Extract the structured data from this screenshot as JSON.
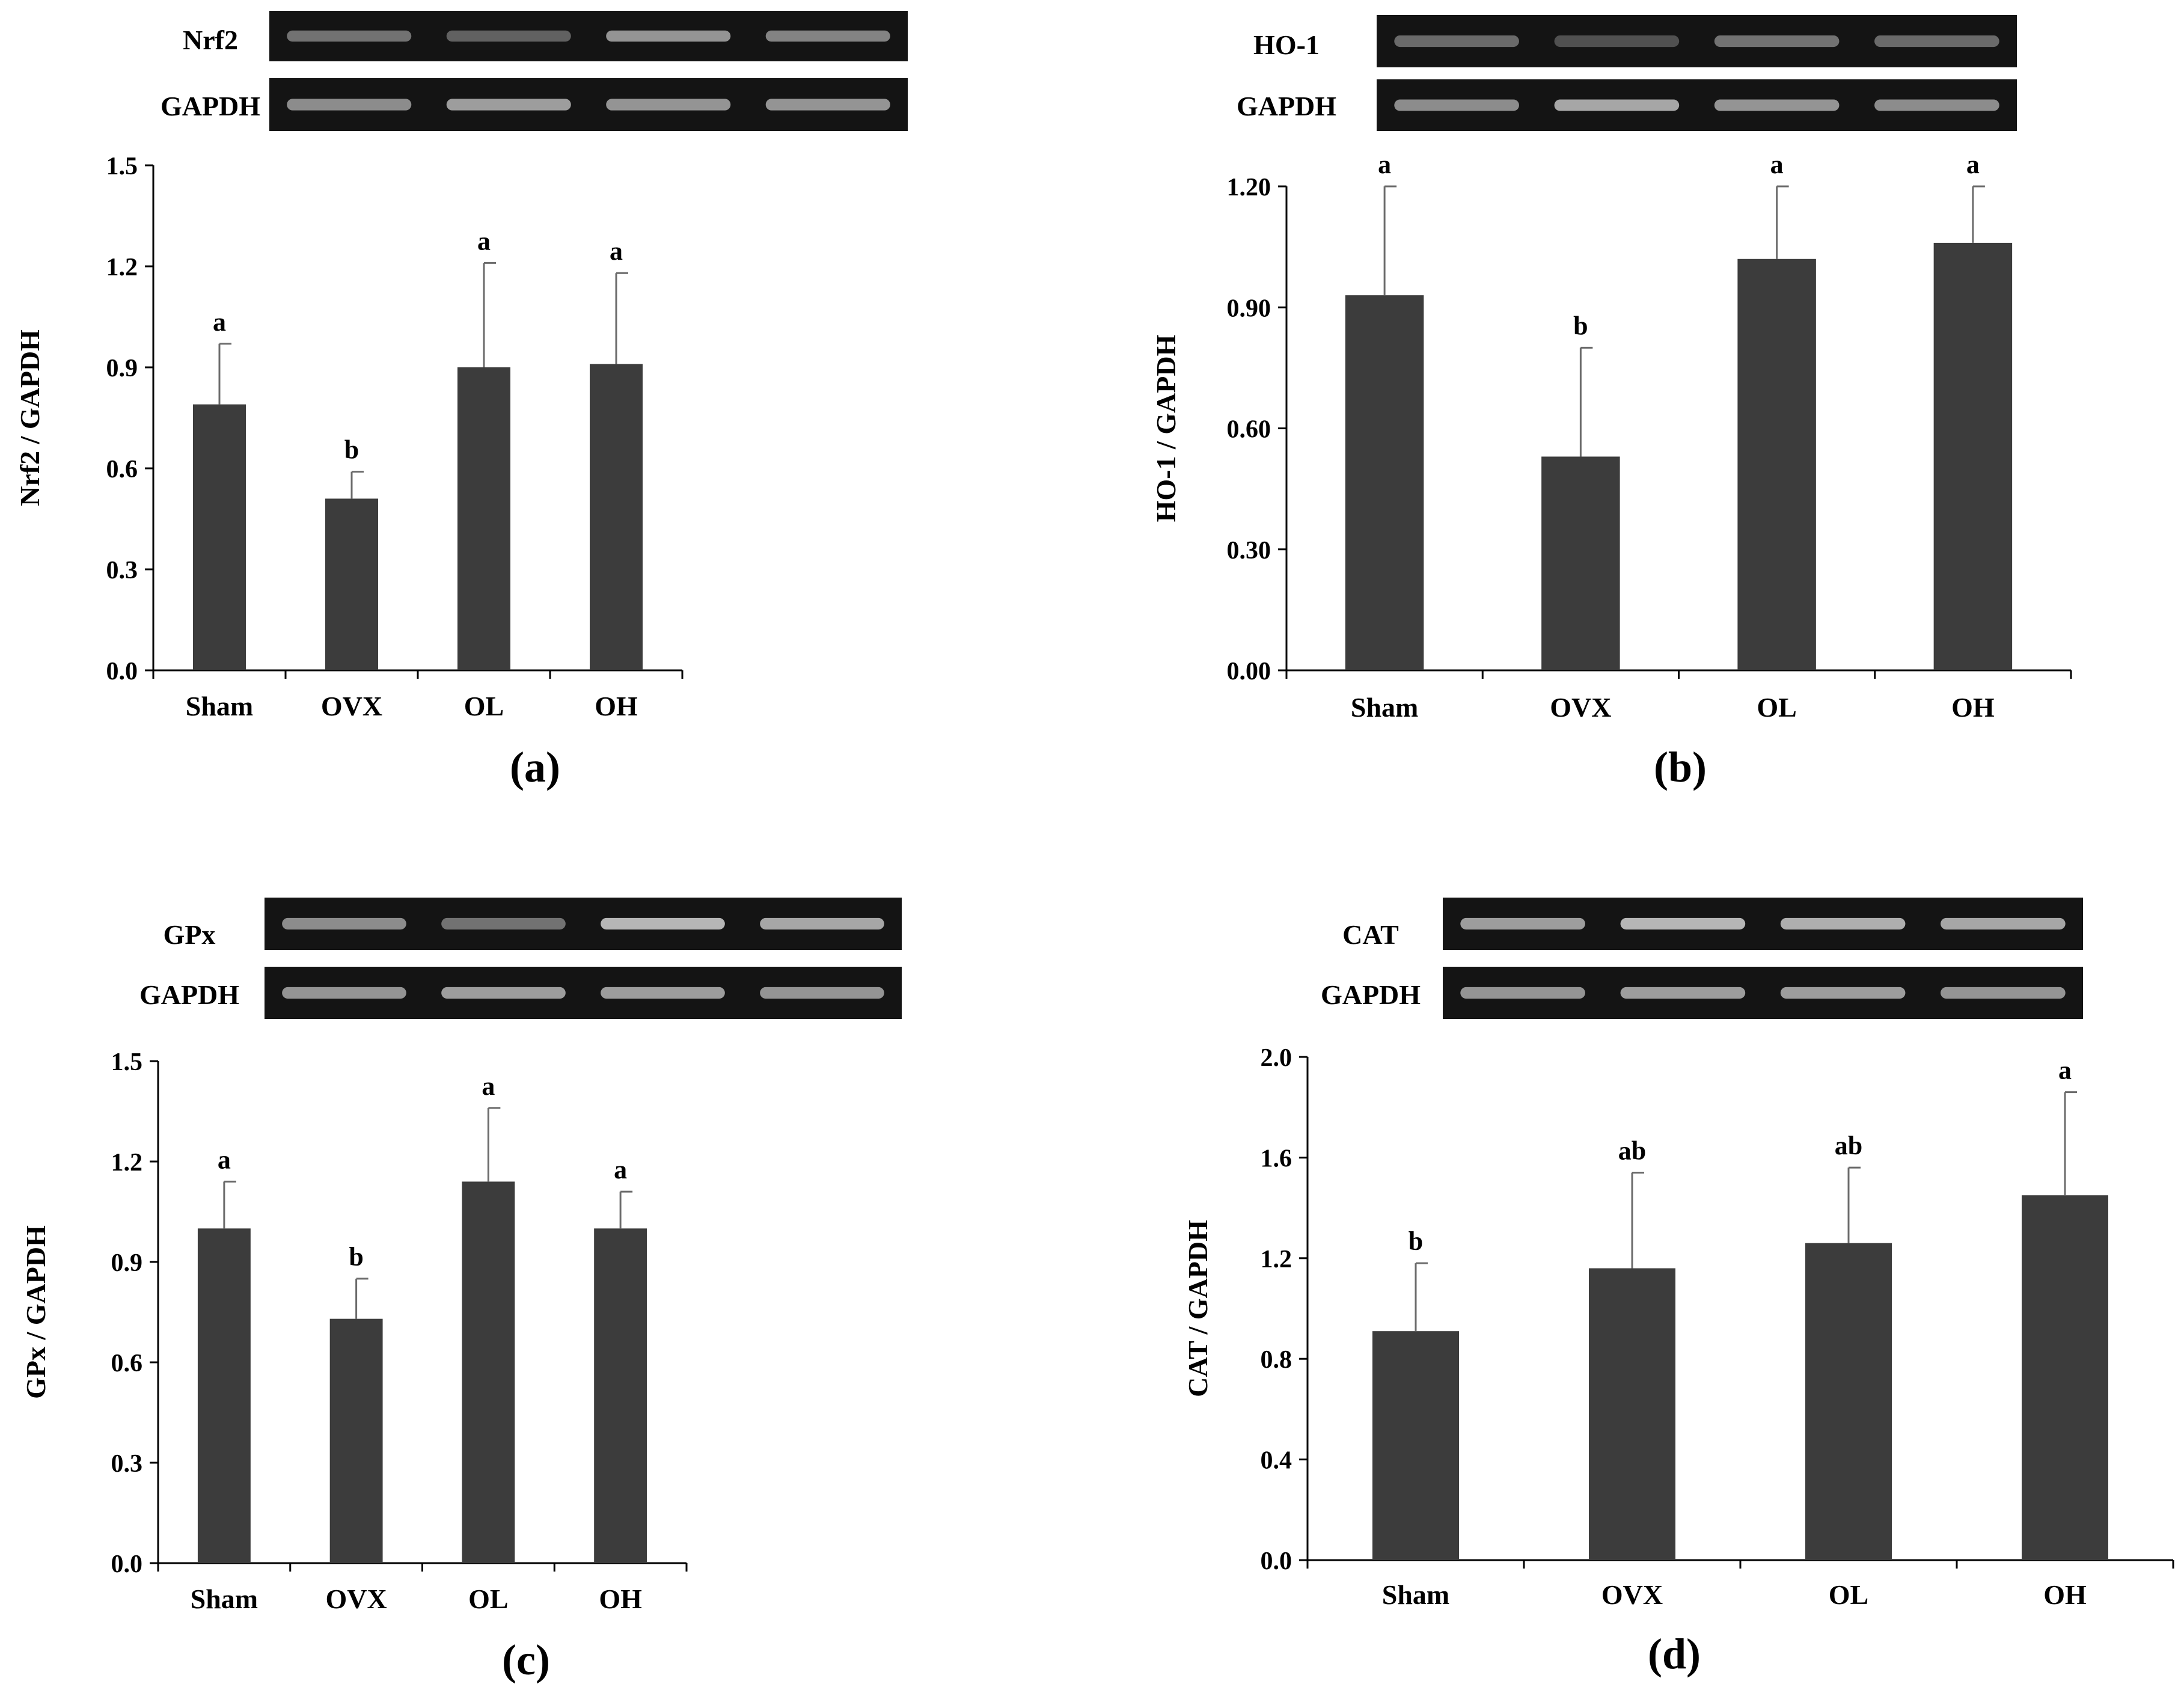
{
  "style": {
    "bar_color": "#3c3c3c",
    "gel_background": "#141414",
    "band_color": "#bfbfbf",
    "axis_color": "#000000"
  },
  "chart_data": [
    {
      "type": "bar",
      "panel_label": "(a)",
      "gene": "Nrf2",
      "loading_control": "GAPDH",
      "title": "",
      "xlabel": "",
      "ylabel": "Nrf2 / GAPDH",
      "categories": [
        "Sham",
        "OVX",
        "OL",
        "OH"
      ],
      "values": [
        0.79,
        0.51,
        0.9,
        0.91
      ],
      "errors": [
        0.18,
        0.08,
        0.31,
        0.27
      ],
      "significance": [
        "a",
        "b",
        "a",
        "a"
      ],
      "ylim": [
        0,
        1.5
      ],
      "yticks": [
        "0.0",
        "0.3",
        "0.6",
        "0.9",
        "1.2",
        "1.5"
      ],
      "gel_gene_bands": [
        0.55,
        0.45,
        0.75,
        0.65
      ],
      "gel_gapdh_bands": [
        0.7,
        0.8,
        0.75,
        0.75
      ]
    },
    {
      "type": "bar",
      "panel_label": "(b)",
      "gene": "HO-1",
      "loading_control": "GAPDH",
      "title": "",
      "xlabel": "",
      "ylabel": "HO-1 / GAPDH",
      "categories": [
        "Sham",
        "OVX",
        "OL",
        "OH"
      ],
      "values": [
        0.93,
        0.53,
        1.02,
        1.06
      ],
      "errors": [
        0.27,
        0.27,
        0.18,
        0.14
      ],
      "significance": [
        "a",
        "b",
        "a",
        "a"
      ],
      "ylim": [
        0,
        1.2
      ],
      "yticks": [
        "0.00",
        "0.30",
        "0.60",
        "0.90",
        "1.20"
      ],
      "gel_gene_bands": [
        0.5,
        0.35,
        0.55,
        0.5
      ],
      "gel_gapdh_bands": [
        0.7,
        0.85,
        0.75,
        0.7
      ]
    },
    {
      "type": "bar",
      "panel_label": "(c)",
      "gene": "GPx",
      "loading_control": "GAPDH",
      "title": "",
      "xlabel": "",
      "ylabel": "GPx / GAPDH",
      "categories": [
        "Sham",
        "OVX",
        "OL",
        "OH"
      ],
      "values": [
        1.0,
        0.73,
        1.14,
        1.0
      ],
      "errors": [
        0.14,
        0.12,
        0.22,
        0.11
      ],
      "significance": [
        "a",
        "b",
        "a",
        "a"
      ],
      "ylim": [
        0,
        1.5
      ],
      "yticks": [
        "0.0",
        "0.3",
        "0.6",
        "0.9",
        "1.2",
        "1.5"
      ],
      "gel_gene_bands": [
        0.7,
        0.55,
        0.95,
        0.85
      ],
      "gel_gapdh_bands": [
        0.75,
        0.8,
        0.8,
        0.75
      ]
    },
    {
      "type": "bar",
      "panel_label": "(d)",
      "gene": "CAT",
      "loading_control": "GAPDH",
      "title": "",
      "xlabel": "",
      "ylabel": "CAT / GAPDH",
      "categories": [
        "Sham",
        "OVX",
        "OL",
        "OH"
      ],
      "values": [
        0.91,
        1.16,
        1.26,
        1.45
      ],
      "errors": [
        0.27,
        0.38,
        0.3,
        0.41
      ],
      "significance": [
        "b",
        "ab",
        "ab",
        "a"
      ],
      "ylim": [
        0,
        2.0
      ],
      "yticks": [
        "0.0",
        "0.4",
        "0.8",
        "1.2",
        "1.6",
        "2.0"
      ],
      "gel_gene_bands": [
        0.8,
        0.95,
        0.9,
        0.85
      ],
      "gel_gapdh_bands": [
        0.75,
        0.8,
        0.8,
        0.75
      ]
    }
  ]
}
